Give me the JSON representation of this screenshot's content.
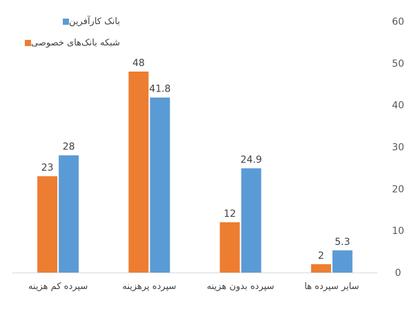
{
  "chart_data": {
    "type": "bar",
    "categories": [
      "سپرده کم هزینه",
      "سپرده پرهزینه",
      "سپرده بدون هزینه",
      "سایر سپرده ها"
    ],
    "series": [
      {
        "name": "شبکه بانک‌های خصوصی",
        "color": "#ED7D31",
        "values": [
          23,
          48,
          12,
          2
        ]
      },
      {
        "name": "بانک کارآفرین",
        "color": "#5B9BD5",
        "values": [
          28,
          41.8,
          24.9,
          5.3
        ]
      }
    ],
    "y_ticks": [
      0,
      10,
      20,
      30,
      40,
      50,
      60
    ],
    "ylim": [
      0,
      60
    ],
    "y_axis_side": "right",
    "legend_position": "top-left",
    "grid": false
  }
}
